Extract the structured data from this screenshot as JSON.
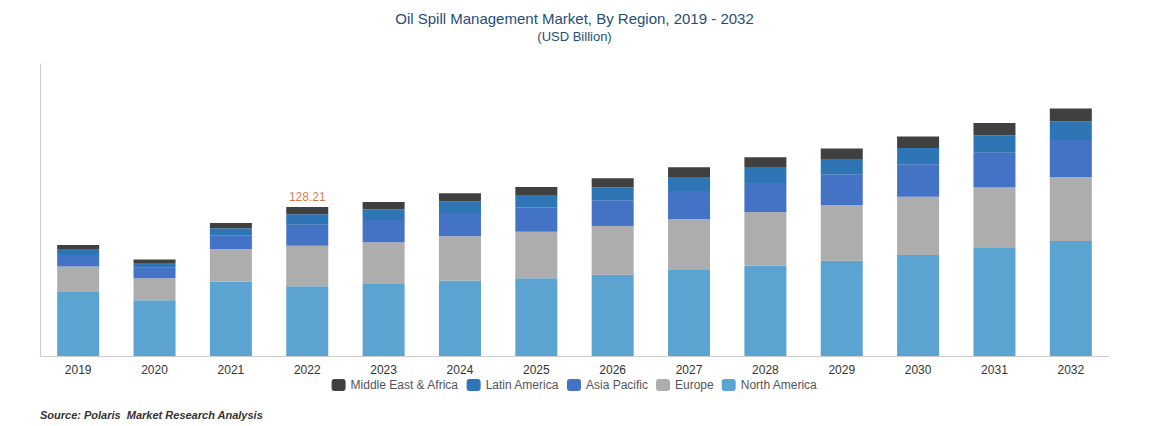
{
  "chart_data": {
    "type": "bar",
    "stacked": true,
    "title": "Oil Spill Management Market, By Region, 2019 - 2032",
    "subtitle": "(USD Billion)",
    "categories": [
      "2019",
      "2020",
      "2021",
      "2022",
      "2023",
      "2024",
      "2025",
      "2026",
      "2027",
      "2028",
      "2029",
      "2030",
      "2031",
      "2032"
    ],
    "series": [
      {
        "name": "North America",
        "color": "#5BA3D0",
        "values": [
          55,
          48,
          64,
          60,
          62,
          65,
          67,
          70,
          74,
          78,
          82,
          87,
          93,
          99
        ]
      },
      {
        "name": "Europe",
        "color": "#ADADAD",
        "values": [
          22,
          19,
          28,
          35,
          36,
          38,
          40,
          42,
          44,
          46,
          48,
          50,
          52,
          55
        ]
      },
      {
        "name": "Asia Pacific",
        "color": "#4472C4",
        "values": [
          10,
          9,
          12,
          18,
          19,
          20,
          21,
          22,
          24,
          25,
          26,
          28,
          30,
          32
        ]
      },
      {
        "name": "Latin America",
        "color": "#2E75B6",
        "values": [
          5,
          4,
          6,
          9,
          9,
          10,
          10,
          11,
          12,
          13,
          13,
          14,
          15,
          16
        ]
      },
      {
        "name": "Middle East & Africa",
        "color": "#404040",
        "values": [
          3.5,
          3,
          4.5,
          6.21,
          6.5,
          7,
          7.5,
          8,
          8.5,
          9,
          9.5,
          10,
          10.5,
          11
        ]
      }
    ],
    "ylim": [
      0,
      251.34
    ],
    "tick_labels": "x",
    "grid": false,
    "legend": "bottom",
    "annotations": [
      {
        "text": "128.21",
        "x": "2022",
        "y": 128.21,
        "color": "#C55A11"
      },
      {
        "text": "Source: Polaris  Market Research Analysis"
      }
    ]
  }
}
